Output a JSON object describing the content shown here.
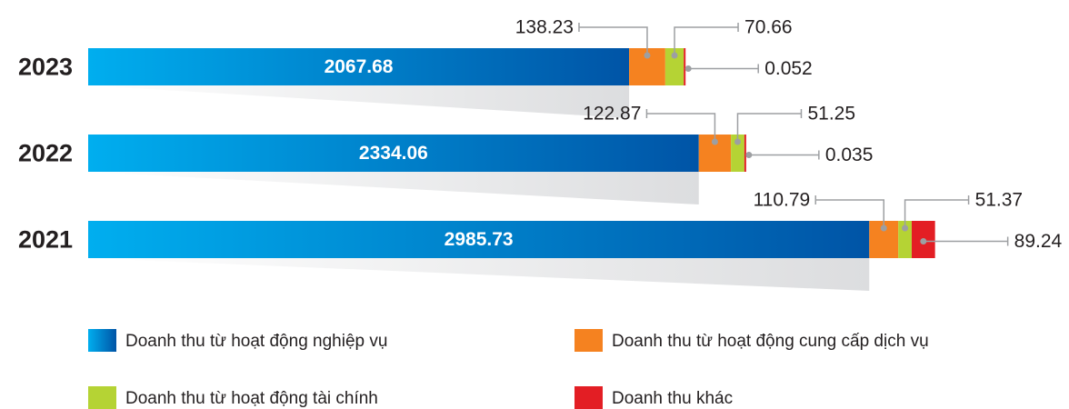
{
  "chart_data": {
    "type": "stacked-bar-horizontal",
    "categories": [
      "2023",
      "2022",
      "2021"
    ],
    "series": [
      {
        "name": "Doanh thu từ hoạt động nghiệp vụ",
        "color": "#0061ad",
        "values": [
          2067.68,
          2334.06,
          2985.73
        ]
      },
      {
        "name": "Doanh thu từ hoạt động cung cấp dịch vụ",
        "color": "#f58220",
        "values": [
          138.23,
          122.87,
          110.79
        ]
      },
      {
        "name": "Doanh thu từ hoạt động tài chính",
        "color": "#b5d334",
        "values": [
          70.66,
          51.25,
          51.37
        ]
      },
      {
        "name": "Doanh thu khác",
        "color": "#e31e24",
        "values": [
          0.052,
          0.035,
          89.24
        ]
      }
    ]
  }
}
